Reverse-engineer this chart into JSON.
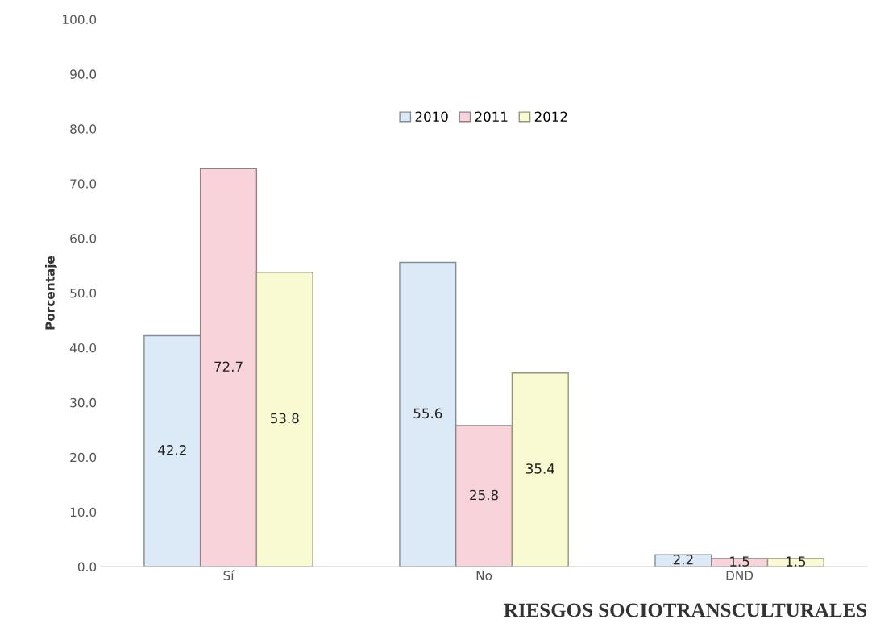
{
  "chart_data": {
    "type": "bar",
    "xlabel": "RIESGOS SOCIOTRANSCULTURALES",
    "ylabel": "Porcentaje",
    "categories": [
      "Sí",
      "No",
      "DND"
    ],
    "series": [
      {
        "name": "2010",
        "color": "#dceaf8",
        "values": [
          42.2,
          55.6,
          2.2
        ]
      },
      {
        "name": "2011",
        "color": "#f8d3da",
        "values": [
          72.7,
          25.8,
          1.5
        ]
      },
      {
        "name": "2012",
        "color": "#fafad2",
        "values": [
          53.8,
          35.4,
          1.5
        ]
      }
    ],
    "ylim": [
      0,
      100
    ],
    "yticks": [
      {
        "value": 0,
        "label": "0.0"
      },
      {
        "value": 10,
        "label": "10.0"
      },
      {
        "value": 20,
        "label": "20.0"
      },
      {
        "value": 30,
        "label": "30.0"
      },
      {
        "value": 40,
        "label": "40.0"
      },
      {
        "value": 50,
        "label": "50.0"
      },
      {
        "value": 60,
        "label": "60.0"
      },
      {
        "value": 70,
        "label": "70.0"
      },
      {
        "value": 80,
        "label": "80.0"
      },
      {
        "value": 90,
        "label": "90.0"
      },
      {
        "value": 100,
        "label": "100.0"
      }
    ],
    "data_labels": true,
    "legend": "top",
    "grid": false
  }
}
